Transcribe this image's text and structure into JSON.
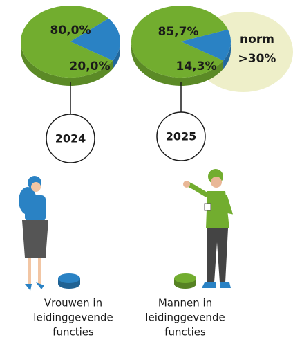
{
  "chart_data": [
    {
      "type": "pie",
      "title": "2024",
      "values": [
        80.0,
        20.0
      ],
      "value_labels": [
        "80,0%",
        "20,0%"
      ],
      "colors": [
        "#72ad2f",
        "#2a82c4"
      ]
    },
    {
      "type": "pie",
      "title": "2025",
      "values": [
        85.7,
        14.3
      ],
      "value_labels": [
        "85,7%",
        "14,3%"
      ],
      "colors": [
        "#72ad2f",
        "#2a82c4"
      ]
    }
  ],
  "annotation": {
    "title": "norm",
    "label": ">30%"
  },
  "legend": [
    {
      "lines": [
        "Vrouwen in",
        "leidinggevende",
        "functies"
      ],
      "color": "#2a82c4"
    },
    {
      "lines": [
        "Mannen in",
        "leidinggevende",
        "functies"
      ],
      "color": "#72ad2f"
    }
  ]
}
